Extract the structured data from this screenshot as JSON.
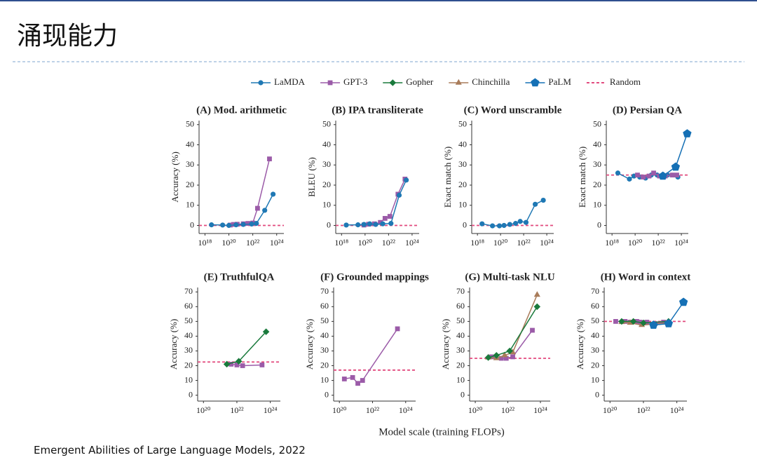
{
  "title": "涌现能力",
  "x_label": "Model scale (training FLOPs)",
  "caption": "Emergent Abilities of Large Language Models, 2022",
  "legend": [
    {
      "name": "LaMDA",
      "color": "#1f78b4",
      "marker": "circle"
    },
    {
      "name": "GPT-3",
      "color": "#9b5ba8",
      "marker": "square"
    },
    {
      "name": "Gopher",
      "color": "#1a7a3c",
      "marker": "diamond"
    },
    {
      "name": "Chinchilla",
      "color": "#a97c5a",
      "marker": "triangle"
    },
    {
      "name": "PaLM",
      "color": "#1570b5",
      "marker": "pentagon"
    },
    {
      "name": "Random",
      "color": "#e24a7e",
      "marker": "dashed"
    }
  ],
  "chart_data": [
    {
      "type": "line",
      "title": "(A) Mod. arithmetic",
      "y_label": "Accuracy (%)",
      "log_x": true,
      "xlim": [
        3.2e+17,
        4e+24
      ],
      "ylim": [
        -4,
        52
      ],
      "yticks": [
        0,
        10,
        20,
        30,
        40,
        50
      ],
      "xticks": [
        {
          "value": 1e+18,
          "label": "10¹⁸"
        },
        {
          "value": 1e+20,
          "label": "10²⁰"
        },
        {
          "value": 1e+22,
          "label": "10²²"
        },
        {
          "value": 1e+24,
          "label": "10²⁴"
        }
      ],
      "random": 0,
      "series": [
        {
          "name": "GPT-3",
          "color": "#9b5ba8",
          "x": [
            1.3e+20,
            2.5e+20,
            5e+20,
            1.6e+21,
            4e+21,
            1e+22,
            2.5e+22,
            2.5e+23
          ],
          "values": [
            0.2,
            0.5,
            0.6,
            0.8,
            1,
            1.2,
            8.5,
            33
          ]
        },
        {
          "name": "LaMDA",
          "color": "#1f78b4",
          "x": [
            3.5e+18,
            3e+19,
            1e+20,
            4e+20,
            1.6e+21,
            8e+21,
            2e+22,
            1e+23,
            5e+23
          ],
          "values": [
            0.3,
            0.2,
            0,
            0.3,
            0.5,
            0.7,
            1,
            7.5,
            15.5
          ]
        }
      ]
    },
    {
      "type": "line",
      "title": "(B) IPA transliterate",
      "y_label": "BLEU (%)",
      "log_x": true,
      "xlim": [
        3.2e+17,
        4e+24
      ],
      "ylim": [
        -4,
        52
      ],
      "yticks": [
        0,
        10,
        20,
        30,
        40,
        50
      ],
      "xticks": [
        {
          "value": 1e+18,
          "label": "10¹⁸"
        },
        {
          "value": 1e+20,
          "label": "10²⁰"
        },
        {
          "value": 1e+22,
          "label": "10²²"
        },
        {
          "value": 1e+24,
          "label": "10²⁴"
        }
      ],
      "random": 0,
      "series": [
        {
          "name": "GPT-3",
          "color": "#9b5ba8",
          "x": [
            8e+19,
            2e+20,
            6.3e+20,
            2e+21,
            5e+21,
            1.3e+22,
            6.3e+22,
            2.5e+23
          ],
          "values": [
            0.2,
            0.6,
            0.8,
            1.5,
            3.5,
            4.5,
            15.5,
            23
          ]
        },
        {
          "name": "LaMDA",
          "color": "#1f78b4",
          "x": [
            2.5e+18,
            2.5e+19,
            8e+19,
            2.5e+20,
            8e+20,
            3.2e+21,
            1.6e+22,
            8e+22,
            3.2e+23
          ],
          "values": [
            0.2,
            0.3,
            0.5,
            0.8,
            0.5,
            0.8,
            1,
            15,
            22.5
          ]
        }
      ]
    },
    {
      "type": "line",
      "title": "(C) Word unscramble",
      "y_label": "Exact match (%)",
      "log_x": true,
      "xlim": [
        3.2e+17,
        4e+24
      ],
      "ylim": [
        -4,
        52
      ],
      "yticks": [
        0,
        10,
        20,
        30,
        40,
        50
      ],
      "xticks": [
        {
          "value": 1e+18,
          "label": "10¹⁸"
        },
        {
          "value": 1e+20,
          "label": "10²⁰"
        },
        {
          "value": 1e+22,
          "label": "10²²"
        },
        {
          "value": 1e+24,
          "label": "10²⁴"
        }
      ],
      "random": 0,
      "series": [
        {
          "name": "LaMDA",
          "color": "#1f78b4",
          "x": [
            2.5e+18,
            2e+19,
            8e+19,
            2e+20,
            6.3e+20,
            2e+21,
            5e+21,
            1.6e+22,
            1e+23,
            5e+23
          ],
          "values": [
            0.8,
            -0.2,
            -0.2,
            0,
            0.5,
            1,
            2,
            1.5,
            10.5,
            12.5
          ]
        }
      ]
    },
    {
      "type": "line",
      "title": "(D) Persian QA",
      "y_label": "Exact match (%)",
      "log_x": true,
      "xlim": [
        3.2e+17,
        4e+24
      ],
      "ylim": [
        -4,
        52
      ],
      "yticks": [
        0,
        10,
        20,
        30,
        40,
        50
      ],
      "xticks": [
        {
          "value": 1e+18,
          "label": "10¹⁸"
        },
        {
          "value": 1e+20,
          "label": "10²⁰"
        },
        {
          "value": 1e+22,
          "label": "10²²"
        },
        {
          "value": 1e+24,
          "label": "10²⁴"
        }
      ],
      "random": 25,
      "series": [
        {
          "name": "LaMDA",
          "color": "#1f78b4",
          "x": [
            3.2e+18,
            3.2e+19,
            8e+19,
            2.5e+20,
            8e+20,
            2.5e+21,
            8e+21,
            2.5e+22,
            6.3e+22,
            5e+23
          ],
          "values": [
            26,
            23,
            24.5,
            24,
            23.5,
            25,
            25,
            24.5,
            25,
            24
          ]
        },
        {
          "name": "GPT-3",
          "color": "#9b5ba8",
          "x": [
            1.6e+20,
            5e+20,
            1.6e+21,
            4e+21,
            1.3e+22,
            4e+22,
            1.6e+23,
            4e+23
          ],
          "values": [
            25,
            24,
            24.5,
            26,
            24.5,
            24.5,
            25,
            25
          ]
        },
        {
          "name": "PaLM",
          "color": "#1570b5",
          "x": [
            2.5e+22,
            3.2e+23,
            3.2e+24
          ],
          "values": [
            24.5,
            29,
            45.5
          ]
        }
      ]
    },
    {
      "type": "line",
      "title": "(E) TruthfulQA",
      "y_label": "Accuracy (%)",
      "log_x": true,
      "xlim": [
        4.5e+19,
        4e+24
      ],
      "ylim": [
        -4,
        73
      ],
      "yticks": [
        0,
        10,
        20,
        30,
        40,
        50,
        60,
        70
      ],
      "xticks": [
        {
          "value": 1e+20,
          "label": "10²⁰"
        },
        {
          "value": 1e+22,
          "label": "10²²"
        },
        {
          "value": 1e+24,
          "label": "10²⁴"
        }
      ],
      "random": 22.5,
      "series": [
        {
          "name": "GPT-3",
          "color": "#9b5ba8",
          "x": [
            4.5e+21,
            1e+22,
            2.2e+22,
            3.2e+23
          ],
          "values": [
            21,
            20.5,
            20,
            20.5
          ]
        },
        {
          "name": "Gopher",
          "color": "#1a7a3c",
          "x": [
            2.5e+21,
            1.3e+22,
            5.6e+23
          ],
          "values": [
            21,
            23,
            43
          ]
        }
      ]
    },
    {
      "type": "line",
      "title": "(F) Grounded mappings",
      "y_label": "Accuracy (%)",
      "log_x": true,
      "xlim": [
        4.5e+19,
        4e+24
      ],
      "ylim": [
        -4,
        73
      ],
      "yticks": [
        0,
        10,
        20,
        30,
        40,
        50,
        60,
        70
      ],
      "xticks": [
        {
          "value": 1e+20,
          "label": "10²⁰"
        },
        {
          "value": 1e+22,
          "label": "10²²"
        },
        {
          "value": 1e+24,
          "label": "10²⁴"
        }
      ],
      "random": 17,
      "series": [
        {
          "name": "GPT-3",
          "color": "#9b5ba8",
          "x": [
            2e+20,
            6.3e+20,
            1.3e+21,
            2.5e+21,
            3.2e+23
          ],
          "values": [
            11,
            12,
            8,
            10,
            45
          ]
        }
      ]
    },
    {
      "type": "line",
      "title": "(G) Multi-task NLU",
      "y_label": "Accuracy (%)",
      "log_x": true,
      "xlim": [
        4.5e+19,
        4e+24
      ],
      "ylim": [
        -4,
        73
      ],
      "yticks": [
        0,
        10,
        20,
        30,
        40,
        50,
        60,
        70
      ],
      "xticks": [
        {
          "value": 1e+20,
          "label": "10²⁰"
        },
        {
          "value": 1e+22,
          "label": "10²²"
        },
        {
          "value": 1e+24,
          "label": "10²⁴"
        }
      ],
      "random": 25,
      "series": [
        {
          "name": "GPT-3",
          "color": "#9b5ba8",
          "x": [
            1e+21,
            4e+21,
            8e+21,
            2e+22,
            3.2e+23
          ],
          "values": [
            26,
            25,
            25,
            26,
            44
          ]
        },
        {
          "name": "Chinchilla",
          "color": "#a97c5a",
          "x": [
            6.3e+20,
            2e+21,
            6.3e+21,
            2e+22,
            6.3e+23
          ],
          "values": [
            25.5,
            25,
            27,
            29,
            68
          ]
        },
        {
          "name": "Gopher",
          "color": "#1a7a3c",
          "x": [
            6.3e+20,
            2e+21,
            1.3e+22,
            6.3e+23
          ],
          "values": [
            25.5,
            27,
            30,
            60
          ]
        }
      ]
    },
    {
      "type": "line",
      "title": "(H) Word in context",
      "y_label": "Accuracy (%)",
      "log_x": true,
      "xlim": [
        4.5e+19,
        4e+24
      ],
      "ylim": [
        -4,
        73
      ],
      "yticks": [
        0,
        10,
        20,
        30,
        40,
        50,
        60,
        70
      ],
      "xticks": [
        {
          "value": 1e+20,
          "label": "10²⁰"
        },
        {
          "value": 1e+22,
          "label": "10²²"
        },
        {
          "value": 1e+24,
          "label": "10²⁴"
        }
      ],
      "random": 50,
      "series": [
        {
          "name": "GPT-3",
          "color": "#9b5ba8",
          "x": [
            2.2e+20,
            8e+20,
            1.6e+21,
            4e+21,
            6.3e+21,
            1.6e+22,
            5e+22,
            1.6e+23
          ],
          "values": [
            50,
            50,
            49.5,
            50,
            49.5,
            49.5,
            48.5,
            49.5
          ]
        },
        {
          "name": "Chinchilla",
          "color": "#a97c5a",
          "x": [
            5e+20,
            1.6e+21,
            8e+21,
            3.2e+23
          ],
          "values": [
            49.5,
            49,
            47.5,
            49
          ]
        },
        {
          "name": "Gopher",
          "color": "#1a7a3c",
          "x": [
            5e+20,
            2.5e+21,
            1e+22,
            3.2e+23
          ],
          "values": [
            50,
            50,
            49,
            50
          ]
        },
        {
          "name": "PaLM",
          "color": "#1570b5",
          "x": [
            4e+22,
            3.2e+23,
            2.5e+24
          ],
          "values": [
            47.5,
            48.5,
            63
          ]
        }
      ]
    }
  ]
}
